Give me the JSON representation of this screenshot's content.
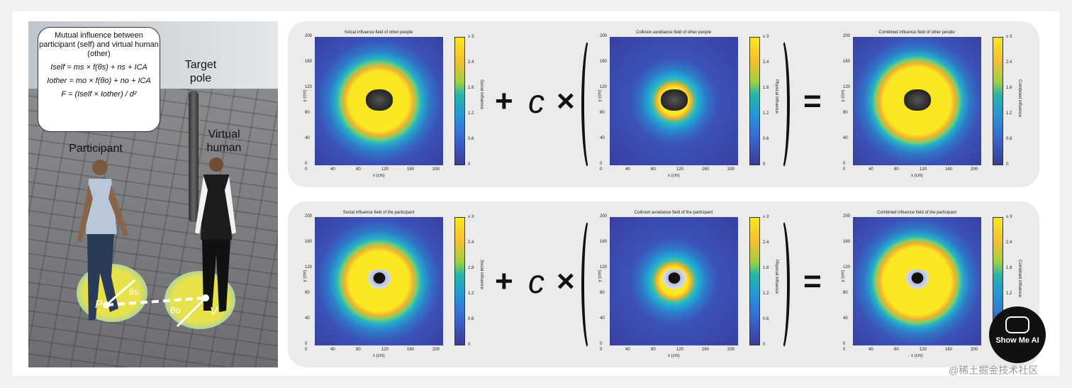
{
  "scene": {
    "formula": {
      "heading": "Mutual influence between participant (self) and virtual human (other)",
      "eq1": "Iself = ms × f(θs) + ns + ICA",
      "eq2": "Iother = mo × f(θo) + no + ICA",
      "eq3": "F = (Iself × Iother) / d²"
    },
    "target_pole": "Target pole",
    "virtual_human": "Virtual human",
    "participant": "Participant",
    "label_p": "P",
    "label_v": "V",
    "theta_s": "θs",
    "theta_o": "θo"
  },
  "operators": {
    "plus": "+",
    "c": "c",
    "times": "×",
    "equals": "="
  },
  "rows": [
    {
      "plots": [
        {
          "title": "Social influence field of other people",
          "cbar_label": "Social influence"
        },
        {
          "title": "Collision avoidance field of other people",
          "cbar_label": "Physical influence"
        },
        {
          "title": "Combined influence field of other people",
          "cbar_label": "Combined influence"
        }
      ]
    },
    {
      "plots": [
        {
          "title": "Social influence field of the participant",
          "cbar_label": "Social influence"
        },
        {
          "title": "Collision avoidance field of the participant",
          "cbar_label": "Physical influence"
        },
        {
          "title": "Combined influence field of the participant",
          "cbar_label": "Combined influence"
        }
      ]
    }
  ],
  "axes": {
    "xlabel": "x (cm)",
    "ylabel": "y (cm)",
    "ticks": [
      "0",
      "40",
      "80",
      "120",
      "160",
      "200"
    ],
    "cbar_ticks": [
      "≥ 3",
      "2.4",
      "1.8",
      "1.2",
      "0.6",
      "0"
    ]
  },
  "colormap": {
    "high": "#f9e721",
    "mid": "#26b5a8",
    "low": "#3b3c95"
  },
  "watermark": {
    "badge": "Show Me AI",
    "text": "@稀土掘金技术社区"
  }
}
